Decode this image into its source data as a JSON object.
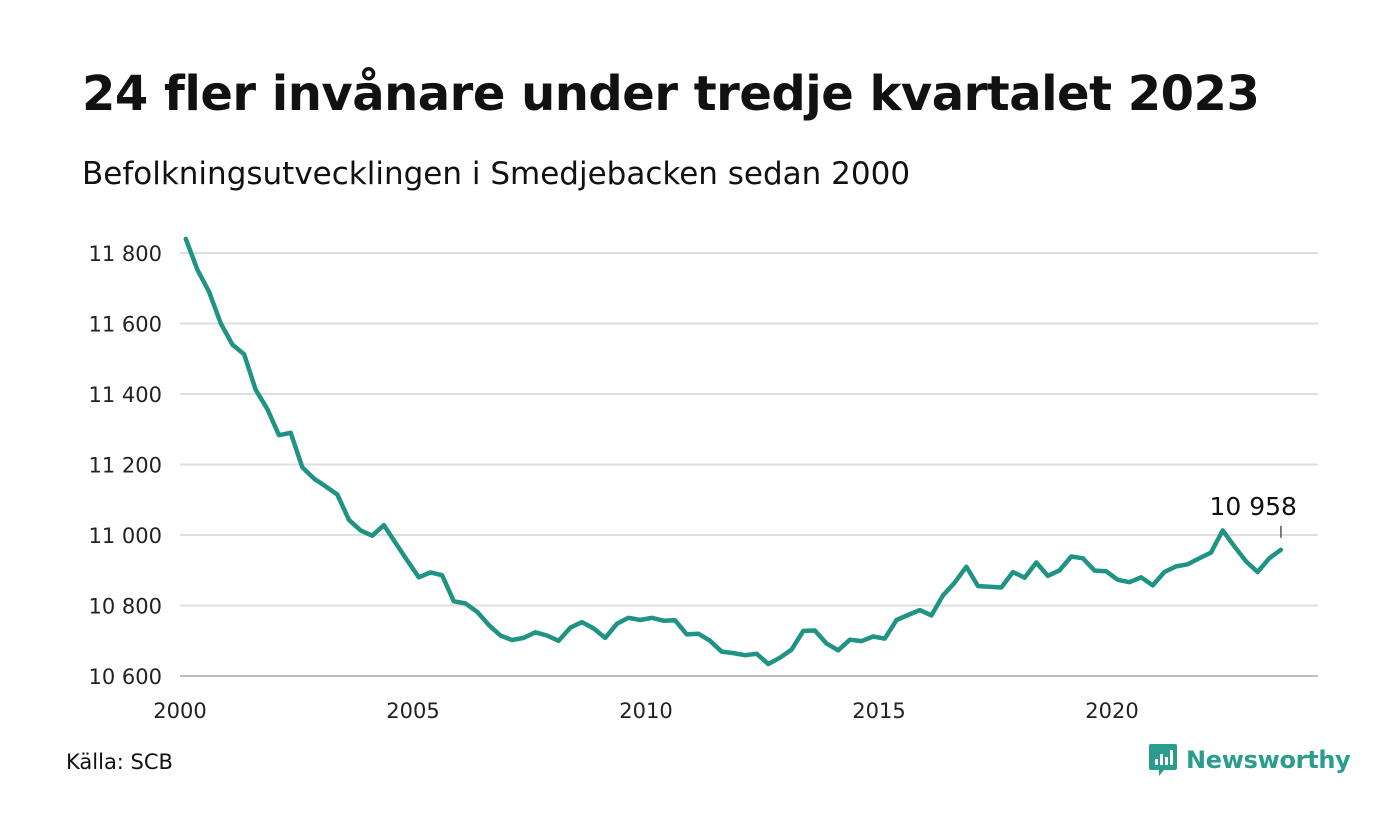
{
  "title": "24 fler invånare under tredje kvartalet 2023",
  "subtitle": "Befolkningsutvecklingen i Smedjebacken sedan 2000",
  "source": "Källa: SCB",
  "brand": {
    "name": "Newsworthy",
    "icon": "newsworthy-logo-icon",
    "color": "#2a9d8f"
  },
  "chart_data": {
    "type": "line",
    "title": "24 fler invånare under tredje kvartalet 2023",
    "subtitle": "Befolkningsutvecklingen i Smedjebacken sedan 2000",
    "xlabel": "",
    "ylabel": "",
    "ylim": [
      10600,
      11850
    ],
    "xlim": [
      2000,
      2024.5
    ],
    "x_ticks": [
      2000,
      2005,
      2010,
      2015,
      2020
    ],
    "x_tick_labels": [
      "2000",
      "2005",
      "2010",
      "2015",
      "2020"
    ],
    "y_ticks": [
      10600,
      10800,
      11000,
      11200,
      11400,
      11600,
      11800
    ],
    "y_tick_labels": [
      "10 600",
      "10 800",
      "11 000",
      "11 200",
      "11 400",
      "11 600",
      "11 800"
    ],
    "grid": "horizontal",
    "line_color": "#1f9384",
    "last_value_label": "10 958",
    "series": [
      {
        "x_start": "2000 Q1",
        "frequency": "quarterly",
        "values": [
          11840,
          11752,
          11690,
          11600,
          11540,
          11513,
          11412,
          11357,
          11283,
          11290,
          11192,
          11160,
          11138,
          11115,
          11043,
          11013,
          10998,
          11028,
          10978,
          10928,
          10880,
          10894,
          10886,
          10812,
          10806,
          10782,
          10745,
          10715,
          10702,
          10708,
          10724,
          10715,
          10700,
          10737,
          10753,
          10735,
          10708,
          10748,
          10765,
          10759,
          10765,
          10757,
          10758,
          10718,
          10720,
          10700,
          10669,
          10665,
          10659,
          10663,
          10634,
          10652,
          10675,
          10728,
          10729,
          10692,
          10673,
          10703,
          10699,
          10712,
          10706,
          10759,
          10773,
          10787,
          10772,
          10829,
          10865,
          10910,
          10855,
          10853,
          10851,
          10895,
          10879,
          10922,
          10884,
          10900,
          10939,
          10934,
          10899,
          10897,
          10873,
          10866,
          10880,
          10857,
          10895,
          10911,
          10917,
          10934,
          10950,
          11013,
          10968,
          10925,
          10895,
          10934,
          10958
        ]
      }
    ]
  }
}
